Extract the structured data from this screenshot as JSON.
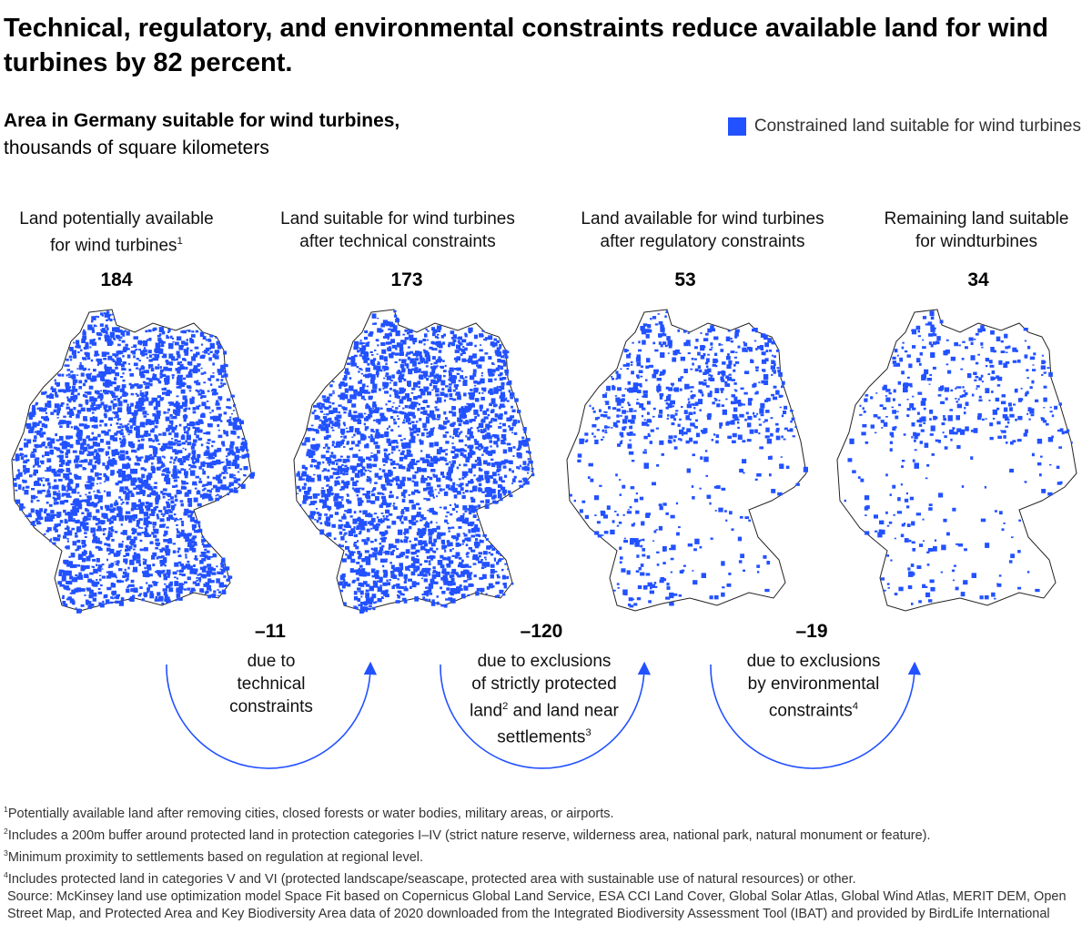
{
  "title": "Technical, regulatory, and environmental constraints reduce available land for wind turbines by 82 percent.",
  "subtitle_bold": "Area in Germany suitable for wind turbines,",
  "subtitle_unit": "thousands of square kilometers",
  "legend_label": "Constrained land suitable for wind turbines",
  "accent_color": "#2251ff",
  "chart_data": {
    "type": "bar",
    "title": "Area in Germany suitable for wind turbines, thousands of square kilometers",
    "categories": [
      "Land potentially available for wind turbines",
      "Land suitable for wind turbines after technical constraints",
      "Land available for wind turbines after regulatory constraints",
      "Remaining land suitable for windturbines"
    ],
    "values": [
      184,
      173,
      53,
      34
    ],
    "value_labels": [
      "184",
      "173",
      "53",
      "34"
    ],
    "deltas": [
      {
        "value": -11,
        "label": "–11",
        "text": "due to technical constraints"
      },
      {
        "value": -120,
        "label": "–120",
        "text": "due to exclusions of strictly protected land and land near settlements"
      },
      {
        "value": -19,
        "label": "–19",
        "text": "due to exclusions by environmental constraints"
      }
    ],
    "units": "thousands of square kilometers"
  },
  "stages": [
    {
      "label_l1": "Land potentially available",
      "label_l2": "for wind turbines",
      "sup": "1",
      "value": "184"
    },
    {
      "label_l1": "Land suitable for wind turbines",
      "label_l2": "after technical constraints",
      "sup": "",
      "value": "173"
    },
    {
      "label_l1": "Land available for wind turbines",
      "label_l2": "after regulatory constraints",
      "sup": "",
      "value": "53"
    },
    {
      "label_l1": "Remaining land suitable",
      "label_l2": "for windturbines",
      "sup": "",
      "value": "34"
    }
  ],
  "deltas": [
    {
      "value": "–11",
      "l1": "due to",
      "l2": "technical",
      "l3": "constraints"
    },
    {
      "value": "–120",
      "l1": "due to exclusions",
      "l2": "of strictly protected",
      "l3a": "land",
      "sup3a": "2",
      "l3b": " and land near",
      "l4": "settlements",
      "sup4": "3"
    },
    {
      "value": "–19",
      "l1": "due to exclusions",
      "l2": "by environmental",
      "l3": "constraints",
      "sup3": "4"
    }
  ],
  "footnotes": [
    {
      "n": "1",
      "text": "Potentially available land after removing cities, closed forests or water bodies, military areas, or airports."
    },
    {
      "n": "2",
      "text": "Includes a 200m buffer around protected land in protection categories I–IV (strict nature reserve, wilderness area, national park, natural monument or feature)."
    },
    {
      "n": "3",
      "text": "Minimum proximity to settlements based on regulation at regional level."
    },
    {
      "n": "4",
      "text": "Includes protected land in categories V and VI (protected landscape/seascape, protected area with sustainable use of natural resources) or other."
    }
  ],
  "source": "Source: McKinsey land use optimization model Space Fit based on Copernicus Global Land Service, ESA CCI Land Cover, Global Solar Atlas, Global Wind Atlas, MERIT DEM, Open Street Map, and Protected Area and Key Biodiversity Area data of 2020 downloaded from the Integrated Biodiversity Assessment Tool (IBAT) and provided by BirdLife International"
}
